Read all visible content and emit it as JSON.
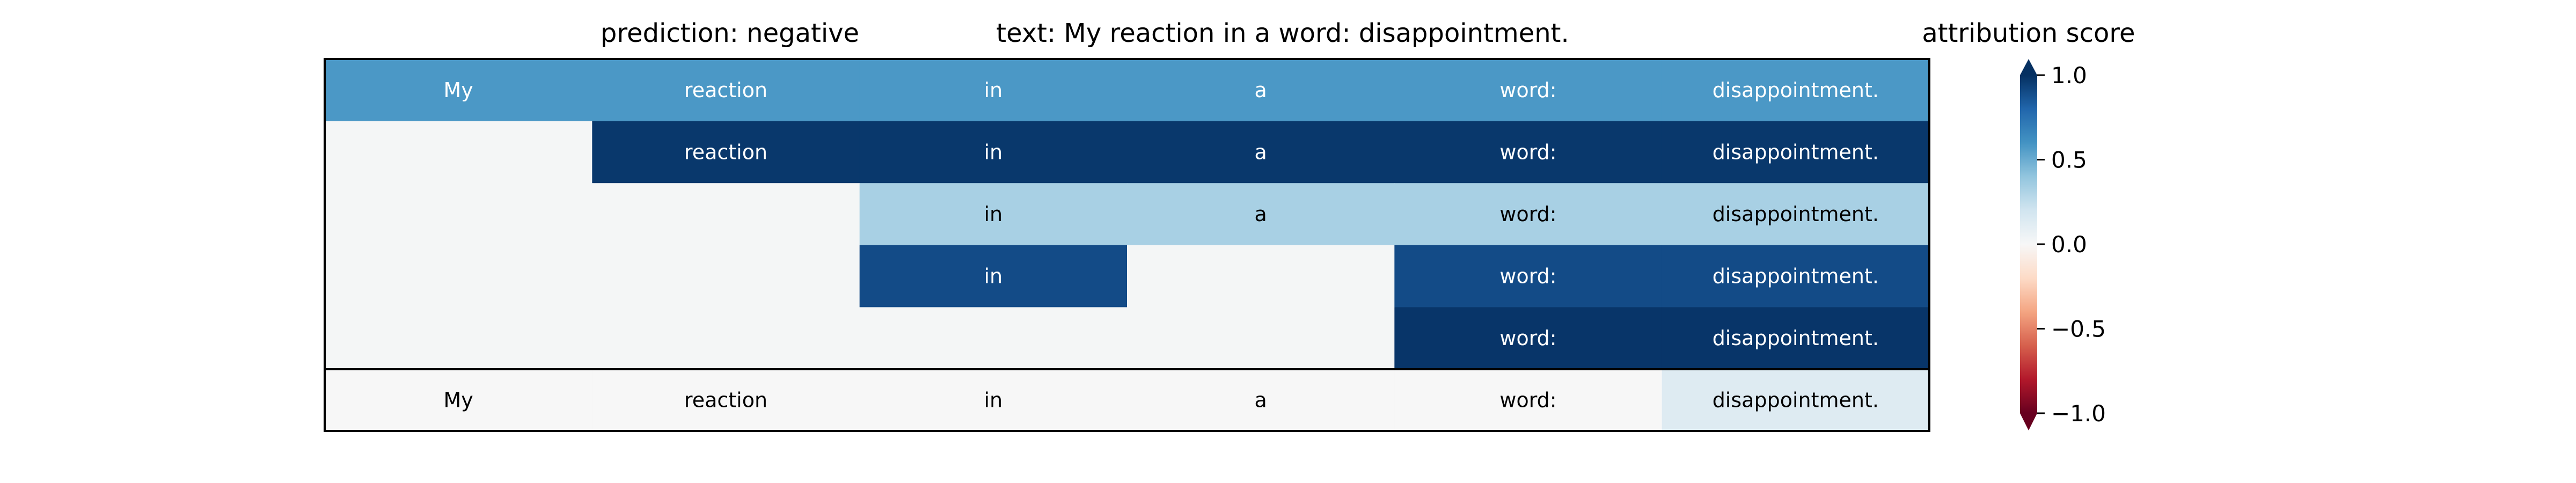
{
  "title": {
    "prediction": "prediction:  negative",
    "text": "text:  My reaction in a word: disappointment."
  },
  "colorbar": {
    "label": "attribution score",
    "ticks": [
      "1.0",
      "0.5",
      "0.0",
      "−0.5",
      "−1.0"
    ],
    "tick_values": [
      1.0,
      0.5,
      0.0,
      -0.5,
      -1.0
    ],
    "range": [
      -1.0,
      1.0
    ],
    "colormap": "RdBu (red = -1, white = 0, blue = +1)"
  },
  "chart_data": {
    "type": "heatmap",
    "tokens": [
      "My",
      "reaction",
      "in",
      "a",
      "word:",
      "disappointment."
    ],
    "rows": [
      {
        "cells": [
          0.58,
          0.58,
          0.58,
          0.58,
          0.58,
          0.58
        ],
        "mask": [
          1,
          1,
          1,
          1,
          1,
          1
        ]
      },
      {
        "cells": [
          null,
          0.97,
          0.97,
          0.97,
          0.97,
          0.97
        ],
        "mask": [
          0,
          1,
          1,
          1,
          1,
          1
        ]
      },
      {
        "cells": [
          null,
          null,
          0.33,
          0.33,
          0.33,
          0.33
        ],
        "mask": [
          0,
          0,
          1,
          1,
          1,
          1
        ]
      },
      {
        "cells": [
          null,
          null,
          0.9,
          null,
          0.9,
          0.9
        ],
        "mask": [
          0,
          0,
          1,
          0,
          1,
          1
        ]
      },
      {
        "cells": [
          null,
          null,
          null,
          null,
          0.98,
          0.98
        ],
        "mask": [
          0,
          0,
          0,
          0,
          1,
          1
        ]
      }
    ],
    "summary_row": {
      "cells": [
        0.0,
        0.0,
        0.0,
        0.0,
        0.0,
        0.13
      ],
      "mask": [
        1,
        1,
        1,
        1,
        1,
        1
      ]
    },
    "empty_cell_color": "#f4f6f6"
  }
}
